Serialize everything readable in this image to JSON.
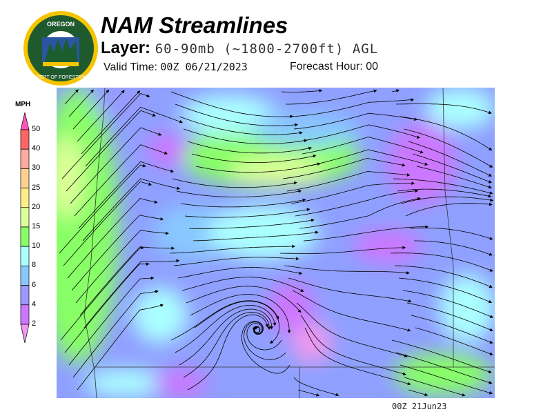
{
  "header": {
    "logo_text": "OREGON DEPARTMENT OF FORESTRY",
    "title": "NAM Streamlines",
    "layer_label": "Layer:",
    "layer_value": "60-90mb (~1800-2700ft) AGL",
    "valid_label": "Valid Time:",
    "valid_value": "00Z 06/21/2023",
    "forecast_label": "Forecast Hour:",
    "forecast_value": "00"
  },
  "legend": {
    "unit": "MPH",
    "ticks": [
      "50",
      "40",
      "30",
      "25",
      "20",
      "15",
      "10",
      "8",
      "6",
      "4",
      "2"
    ],
    "colors": {
      "above_50": "#ff55bb",
      "40_50": "#ff6666",
      "30_40": "#ffaaa0",
      "25_30": "#ffd090",
      "20_25": "#ffee88",
      "15_20": "#ddff99",
      "10_15": "#88ff66",
      "8_10": "#aaffff",
      "6_8": "#88c8ff",
      "4_6": "#9999ff",
      "2_4": "#cc77ff",
      "below_2": "#ee99ee"
    }
  },
  "footer": {
    "stamp": "00Z 21Jun23"
  }
}
